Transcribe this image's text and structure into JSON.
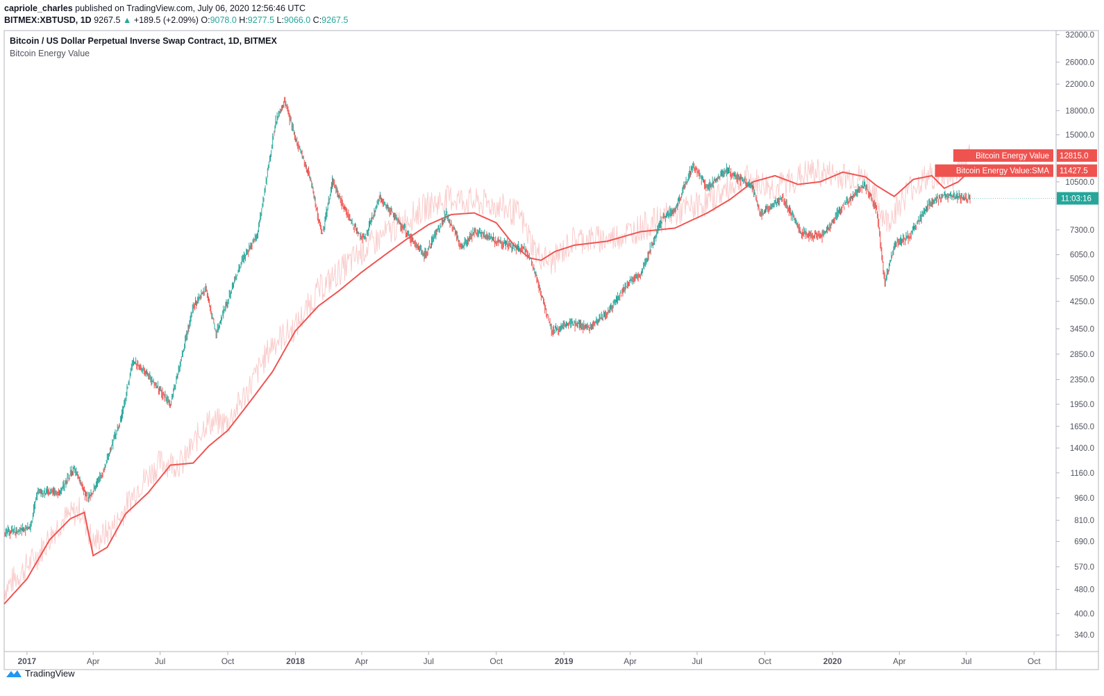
{
  "header": {
    "author": "capriole_charles",
    "published_text": "published on TradingView.com, July 06, 2020 12:56:46 UTC"
  },
  "ohlc": {
    "symbol": "BITMEX:XBTUSD, 1D",
    "last": "9267.5",
    "change": "+189.5 (+2.09%)",
    "o_label": "O:",
    "o": "9078.0",
    "h_label": "H:",
    "h": "9277.5",
    "l_label": "L:",
    "l": "9066.0",
    "c_label": "C:",
    "c": "9267.5"
  },
  "footer": {
    "brand": "TradingView"
  },
  "colors": {
    "up": "#26a69a",
    "down": "#ef5350",
    "energy": "#f5a3a3",
    "sma": "#ef5350",
    "price_tag": "#26a69a"
  },
  "chart_data": {
    "type": "candlestick",
    "title": "Bitcoin / US Dollar Perpetual Inverse Swap Contract, 1D, BITMEX",
    "subtitle": "Bitcoin Energy Value",
    "y_scale": "log",
    "ylim": [
      300,
      33000
    ],
    "y_ticks": [
      "32000.0",
      "26000.0",
      "22000.0",
      "18000.0",
      "15000.0",
      "10500.0",
      "7300.0",
      "6050.0",
      "5050.0",
      "4250.0",
      "3450.0",
      "2850.0",
      "2350.0",
      "1950.0",
      "1650.0",
      "1400.0",
      "1160.0",
      "960.0",
      "810.0",
      "690.0",
      "570.0",
      "480.0",
      "400.0",
      "340.0"
    ],
    "x_range": [
      "2016-12-01",
      "2020-10-31"
    ],
    "x_ticks": [
      {
        "date": "2017-01-01",
        "label": "2017",
        "major": true
      },
      {
        "date": "2017-04-01",
        "label": "Apr",
        "major": false
      },
      {
        "date": "2017-07-01",
        "label": "Jul",
        "major": false
      },
      {
        "date": "2017-10-01",
        "label": "Oct",
        "major": false
      },
      {
        "date": "2018-01-01",
        "label": "2018",
        "major": true
      },
      {
        "date": "2018-04-01",
        "label": "Apr",
        "major": false
      },
      {
        "date": "2018-07-01",
        "label": "Jul",
        "major": false
      },
      {
        "date": "2018-10-01",
        "label": "Oct",
        "major": false
      },
      {
        "date": "2019-01-01",
        "label": "2019",
        "major": true
      },
      {
        "date": "2019-04-01",
        "label": "Apr",
        "major": false
      },
      {
        "date": "2019-07-01",
        "label": "Jul",
        "major": false
      },
      {
        "date": "2019-10-01",
        "label": "Oct",
        "major": false
      },
      {
        "date": "2020-01-01",
        "label": "2020",
        "major": true
      },
      {
        "date": "2020-04-01",
        "label": "Apr",
        "major": false
      },
      {
        "date": "2020-07-01",
        "label": "Jul",
        "major": false
      },
      {
        "date": "2020-10-01",
        "label": "Oct",
        "major": false
      }
    ],
    "series": [
      {
        "name": "XBTUSD",
        "kind": "candles",
        "x": [
          "2016-12-01",
          "2017-01-05",
          "2017-01-15",
          "2017-02-15",
          "2017-03-05",
          "2017-03-25",
          "2017-04-15",
          "2017-05-10",
          "2017-05-25",
          "2017-06-10",
          "2017-07-15",
          "2017-08-01",
          "2017-08-15",
          "2017-09-01",
          "2017-09-15",
          "2017-10-01",
          "2017-10-20",
          "2017-11-10",
          "2017-12-05",
          "2017-12-17",
          "2018-01-01",
          "2018-01-20",
          "2018-02-06",
          "2018-02-20",
          "2018-03-05",
          "2018-03-20",
          "2018-04-05",
          "2018-04-25",
          "2018-05-25",
          "2018-06-25",
          "2018-07-25",
          "2018-08-15",
          "2018-09-01",
          "2018-10-15",
          "2018-11-10",
          "2018-11-20",
          "2018-12-15",
          "2019-01-10",
          "2019-02-05",
          "2019-03-01",
          "2019-04-01",
          "2019-04-15",
          "2019-05-15",
          "2019-06-01",
          "2019-06-26",
          "2019-07-15",
          "2019-08-10",
          "2019-09-15",
          "2019-09-25",
          "2019-10-25",
          "2019-11-20",
          "2019-12-18",
          "2020-01-15",
          "2020-02-13",
          "2020-03-01",
          "2020-03-12",
          "2020-03-25",
          "2020-04-15",
          "2020-05-10",
          "2020-06-01",
          "2020-06-20",
          "2020-07-06"
        ],
        "y": [
          740,
          760,
          1000,
          1000,
          1200,
          950,
          1180,
          1800,
          2700,
          2500,
          1950,
          2900,
          4100,
          4700,
          3300,
          4300,
          5800,
          7000,
          16500,
          19500,
          14500,
          11000,
          7000,
          10500,
          9000,
          7500,
          6800,
          9300,
          7500,
          6000,
          8200,
          6400,
          7200,
          6500,
          6300,
          5500,
          3400,
          3600,
          3500,
          3900,
          5000,
          5200,
          8000,
          8500,
          12000,
          10000,
          11500,
          10000,
          8200,
          9300,
          7100,
          7000,
          8700,
          10300,
          8500,
          4900,
          6500,
          7000,
          8800,
          9500,
          9400,
          9267.5
        ]
      },
      {
        "name": "Bitcoin Energy Value",
        "kind": "line",
        "x": [
          "2016-12-01",
          "2017-01-15",
          "2017-02-15",
          "2017-03-15",
          "2017-04-01",
          "2017-05-01",
          "2017-06-01",
          "2017-07-01",
          "2017-08-01",
          "2017-09-01",
          "2017-10-01",
          "2017-11-01",
          "2017-12-01",
          "2018-01-01",
          "2018-02-01",
          "2018-03-01",
          "2018-04-01",
          "2018-05-01",
          "2018-06-01",
          "2018-07-01",
          "2018-08-01",
          "2018-09-01",
          "2018-10-01",
          "2018-11-01",
          "2018-11-25",
          "2018-12-15",
          "2019-01-15",
          "2019-03-01",
          "2019-04-15",
          "2019-06-01",
          "2019-07-15",
          "2019-09-01",
          "2019-10-15",
          "2019-12-01",
          "2020-01-15",
          "2020-02-15",
          "2020-03-15",
          "2020-04-15",
          "2020-05-15",
          "2020-06-15",
          "2020-07-06"
        ],
        "y": [
          480,
          620,
          800,
          880,
          680,
          780,
          1050,
          1250,
          1250,
          1700,
          1700,
          2250,
          3100,
          3500,
          4600,
          5300,
          6200,
          7000,
          7900,
          8800,
          9300,
          9000,
          8800,
          8200,
          6100,
          5700,
          6800,
          6800,
          7400,
          8300,
          9000,
          10800,
          10000,
          11300,
          11000,
          10700,
          7700,
          10000,
          11000,
          11000,
          12815
        ]
      },
      {
        "name": "Bitcoin Energy Value:SMA",
        "kind": "line",
        "x": [
          "2016-12-01",
          "2017-01-01",
          "2017-02-01",
          "2017-03-01",
          "2017-03-20",
          "2017-04-01",
          "2017-04-20",
          "2017-05-15",
          "2017-06-15",
          "2017-07-15",
          "2017-08-15",
          "2017-09-05",
          "2017-10-01",
          "2017-11-01",
          "2017-12-01",
          "2018-01-01",
          "2018-02-01",
          "2018-03-01",
          "2018-04-01",
          "2018-05-01",
          "2018-06-01",
          "2018-07-01",
          "2018-08-01",
          "2018-09-01",
          "2018-10-01",
          "2018-10-25",
          "2018-11-15",
          "2018-12-01",
          "2018-12-20",
          "2019-01-15",
          "2019-03-01",
          "2019-04-15",
          "2019-06-01",
          "2019-07-15",
          "2019-08-15",
          "2019-09-15",
          "2019-10-15",
          "2019-11-15",
          "2019-12-15",
          "2020-01-15",
          "2020-02-15",
          "2020-03-01",
          "2020-03-25",
          "2020-04-20",
          "2020-05-15",
          "2020-06-01",
          "2020-06-20",
          "2020-07-06"
        ],
        "y": [
          430,
          520,
          700,
          820,
          860,
          620,
          660,
          850,
          1000,
          1230,
          1250,
          1420,
          1600,
          2000,
          2500,
          3400,
          4100,
          4600,
          5300,
          6000,
          6800,
          7600,
          8200,
          8300,
          7700,
          6500,
          5900,
          5800,
          6200,
          6500,
          6700,
          7200,
          7400,
          8300,
          9200,
          10500,
          11000,
          10300,
          10500,
          11300,
          10900,
          10200,
          9400,
          10700,
          11000,
          10000,
          10500,
          11427.5
        ]
      }
    ],
    "labels": {
      "energy_tag": "Bitcoin Energy Value",
      "energy_value": "12815.0",
      "sma_tag": "Bitcoin Energy Value:SMA",
      "sma_value": "11427.5",
      "price_countdown": "11:03:16"
    }
  }
}
